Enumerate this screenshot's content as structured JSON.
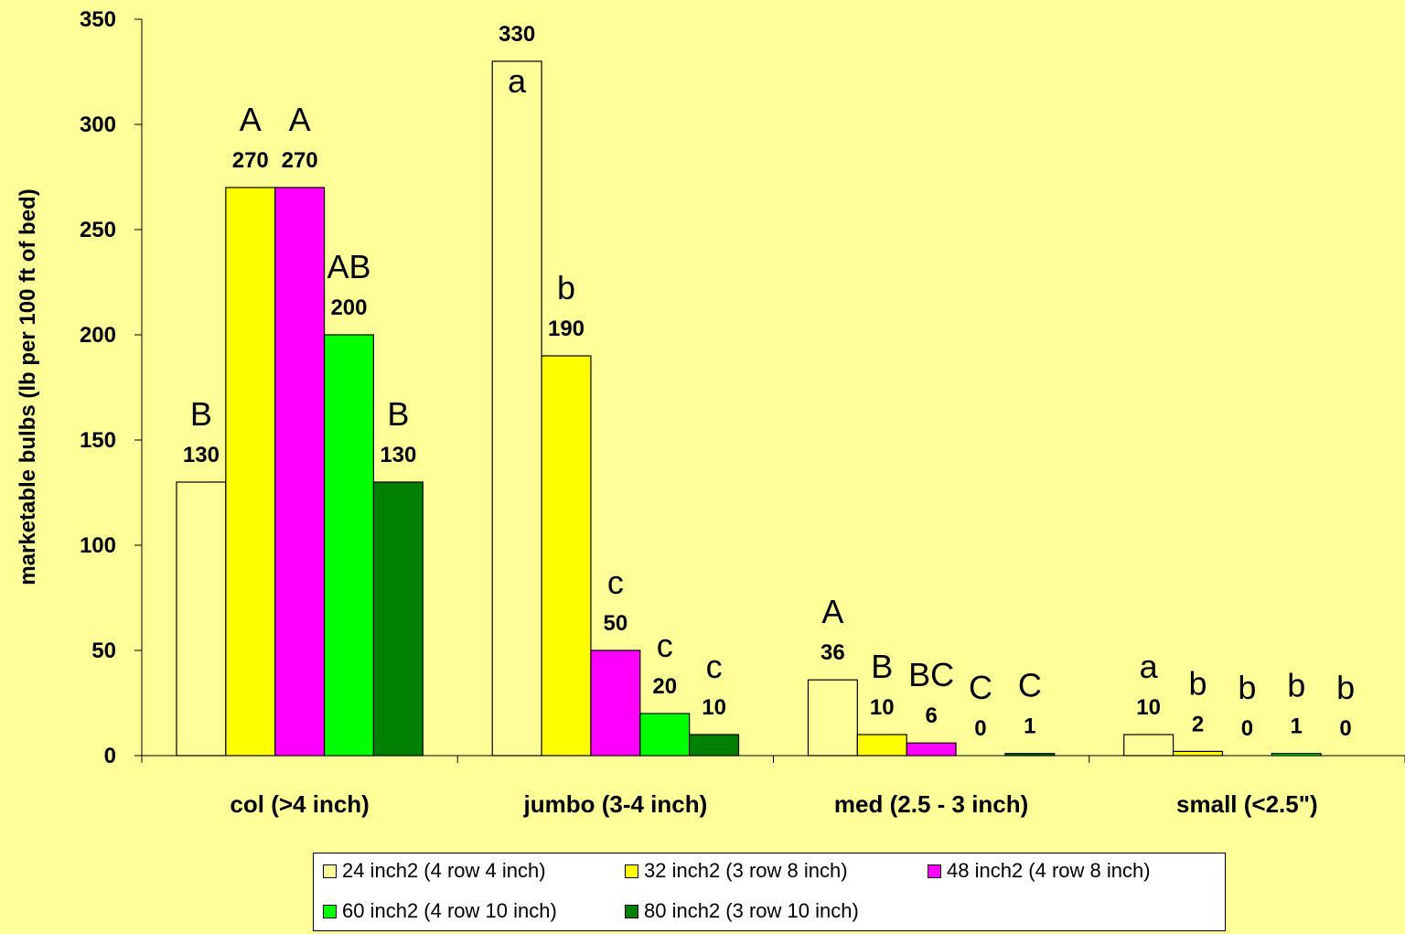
{
  "chart_data": {
    "type": "bar",
    "title": "",
    "xlabel": "",
    "ylabel": "marketable bulbs (lb per 100 ft of bed)",
    "ylim": [
      0,
      350
    ],
    "yticks": [
      0,
      50,
      100,
      150,
      200,
      250,
      300,
      350
    ],
    "grid": false,
    "legend_position": "bottom",
    "categories": [
      "col (>4 inch)",
      "jumbo (3-4 inch)",
      "med (2.5 - 3 inch)",
      "small (<2.5\")"
    ],
    "series": [
      {
        "name": "24 inch2 (4 row 4 inch)",
        "color": "#FFFF99",
        "values": [
          130,
          330,
          36,
          10
        ],
        "labels": [
          "130",
          "330",
          "36",
          "10"
        ],
        "letters": [
          "B",
          "a",
          "A",
          "a"
        ]
      },
      {
        "name": "32 inch2 (3 row 8 inch)",
        "color": "#FFFF00",
        "values": [
          270,
          190,
          10,
          2
        ],
        "labels": [
          "270",
          "190",
          "10",
          "2"
        ],
        "letters": [
          "A",
          "b",
          "B",
          "b"
        ]
      },
      {
        "name": "48 inch2 (4 row 8 inch)",
        "color": "#FF00FF",
        "values": [
          270,
          50,
          6,
          0
        ],
        "labels": [
          "270",
          "50",
          "6",
          "0"
        ],
        "letters": [
          "A",
          "c",
          "BC",
          "b"
        ]
      },
      {
        "name": "60 inch2 (4 row 10 inch)",
        "color": "#00FF00",
        "values": [
          200,
          20,
          0,
          1
        ],
        "labels": [
          "200",
          "20",
          "0",
          "1"
        ],
        "letters": [
          "AB",
          "c",
          "C",
          "b"
        ]
      },
      {
        "name": "80 inch2 (3 row 10 inch)",
        "color": "#008000",
        "values": [
          130,
          10,
          1,
          0
        ],
        "labels": [
          "130",
          "10",
          "1",
          "0"
        ],
        "letters": [
          "B",
          "c",
          "C",
          "b"
        ]
      }
    ]
  }
}
